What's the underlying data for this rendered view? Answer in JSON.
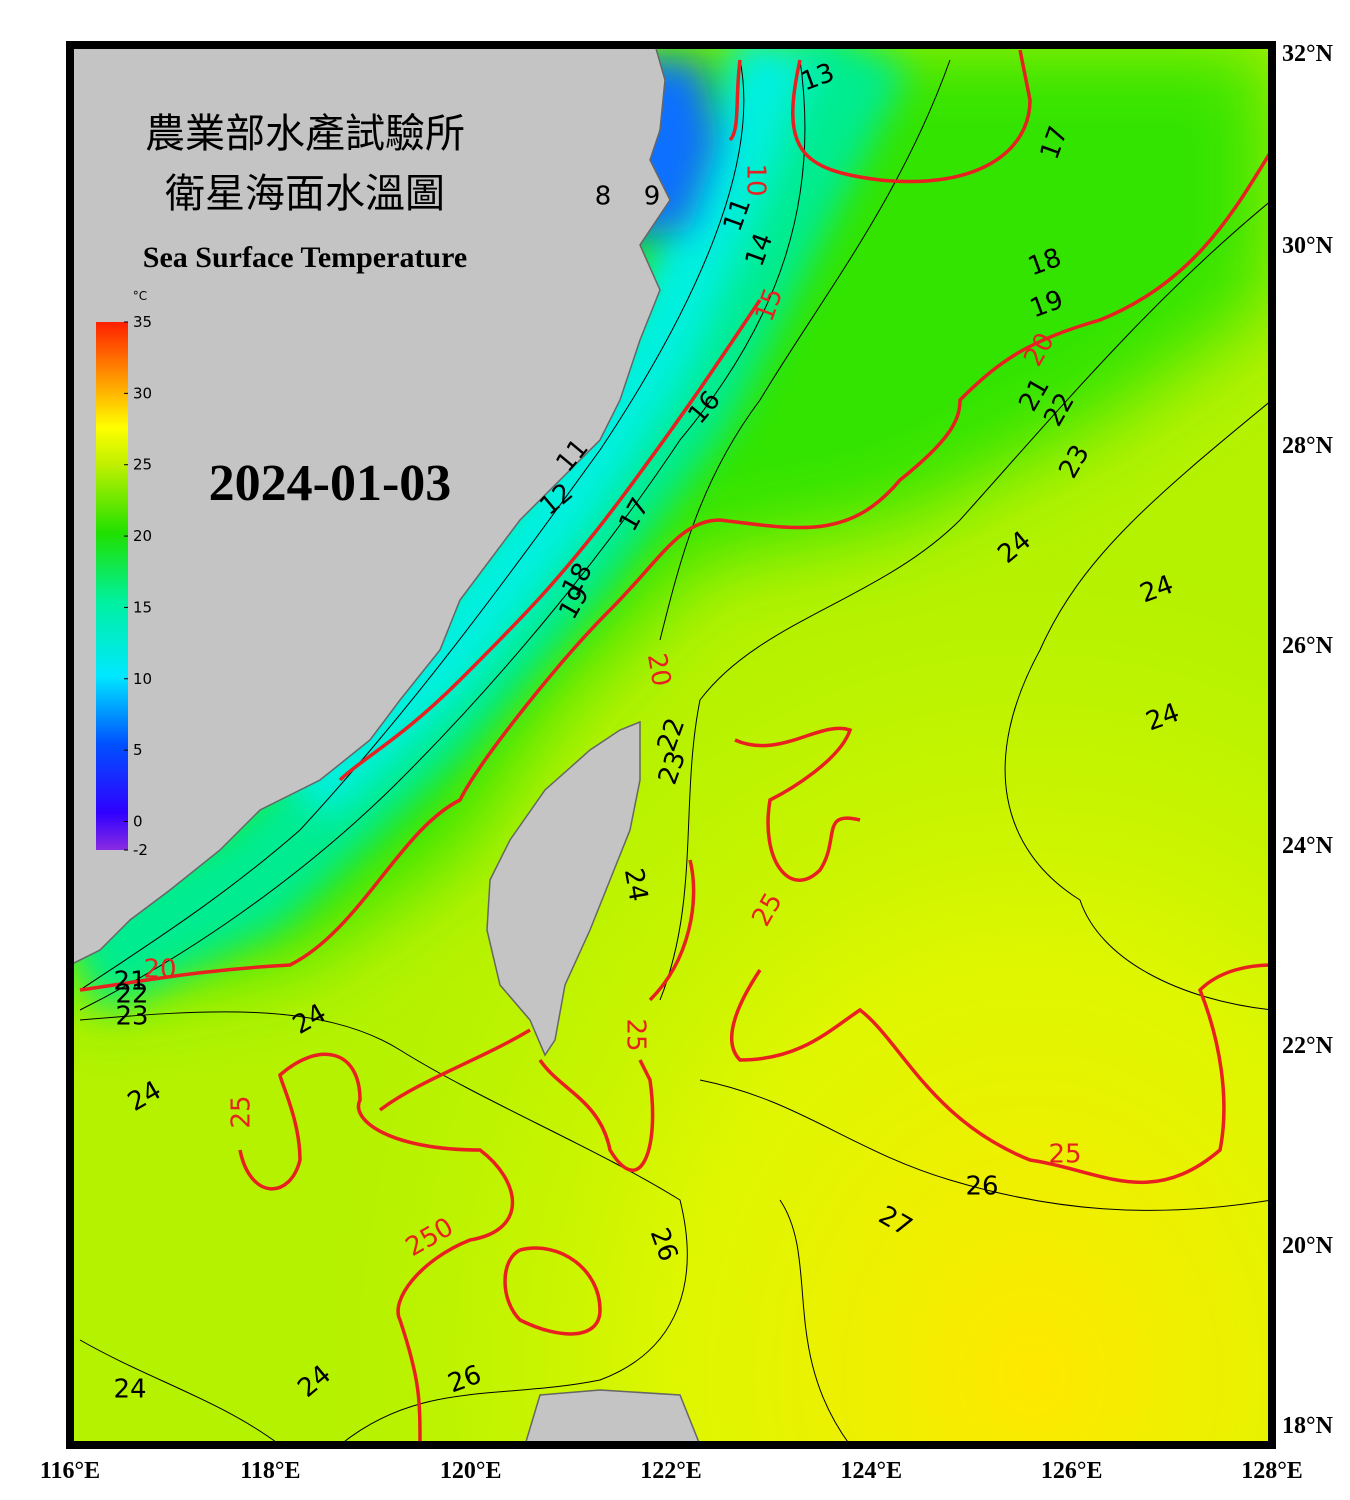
{
  "header": {
    "title_zh_1": "農業部水產試驗所",
    "title_zh_2": "衛星海面水溫圖",
    "title_en": "Sea Surface Temperature",
    "date": "2024-01-03"
  },
  "colorbar": {
    "unit": "°C",
    "range": [
      -2,
      35
    ],
    "ticks": [
      35,
      30,
      25,
      20,
      15,
      10,
      5,
      0,
      -2
    ]
  },
  "map": {
    "xlim": [
      116,
      128
    ],
    "ylim": [
      18,
      32
    ],
    "xticks": [
      {
        "value": 116,
        "label": "116°E"
      },
      {
        "value": 118,
        "label": "118°E"
      },
      {
        "value": 120,
        "label": "120°E"
      },
      {
        "value": 122,
        "label": "122°E"
      },
      {
        "value": 124,
        "label": "124°E"
      },
      {
        "value": 126,
        "label": "126°E"
      },
      {
        "value": 128,
        "label": "128°E"
      }
    ],
    "yticks": [
      {
        "value": 32,
        "label": "32°N"
      },
      {
        "value": 30,
        "label": "30°N"
      },
      {
        "value": 28,
        "label": "28°N"
      },
      {
        "value": 26,
        "label": "26°N"
      },
      {
        "value": 24,
        "label": "24°N"
      },
      {
        "value": 22,
        "label": "22°N"
      },
      {
        "value": 20,
        "label": "20°N"
      },
      {
        "value": 18,
        "label": "18°N"
      }
    ],
    "contour_labels": [
      "13",
      "17",
      "18",
      "19",
      "20",
      "21",
      "22",
      "23",
      "24",
      "24",
      "24",
      "10",
      "11",
      "14",
      "15",
      "16",
      "9",
      "8",
      "11",
      "12",
      "17",
      "18",
      "19",
      "20",
      "22",
      "23",
      "24",
      "25",
      "25",
      "25",
      "26",
      "27",
      "26",
      "250",
      "25",
      "24",
      "24",
      "23",
      "22",
      "21",
      "20",
      "24",
      "24",
      "26"
    ]
  }
}
